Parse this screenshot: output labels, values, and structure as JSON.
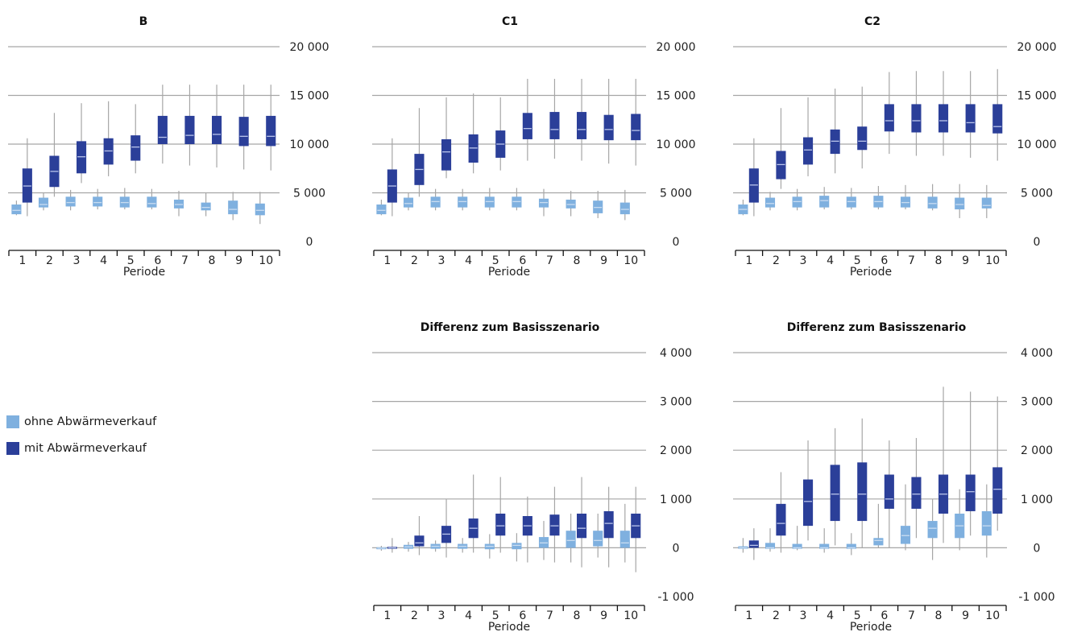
{
  "colors": {
    "ohne": "#7fb0df",
    "mit": "#2b3f99",
    "grid": "#a6a6a6",
    "whisker": "#a6a6a6",
    "median_mit": "#b9c4ea",
    "median_ohne": "#c9dcf1"
  },
  "legend": {
    "items": [
      {
        "label": "ohne Abwärmeverkauf",
        "color": "#7fb0df"
      },
      {
        "label": "mit Abwärmeverkauf",
        "color": "#2b3f99"
      }
    ]
  },
  "chart_data": [
    {
      "type": "box",
      "title": "B",
      "xlabel": "Periode",
      "categories": [
        "1",
        "2",
        "3",
        "4",
        "5",
        "6",
        "7",
        "8",
        "9",
        "10"
      ],
      "ylim": [
        0,
        20000
      ],
      "yticks": [
        0,
        5000,
        10000,
        15000,
        20000
      ],
      "ytick_labels": [
        "0",
        "5 000",
        "10 000",
        "15 000",
        "20 000"
      ],
      "series": [
        {
          "name": "ohne Abwärmeverkauf",
          "min": [
            2700,
            3200,
            3200,
            3300,
            3300,
            3300,
            2600,
            2600,
            2200,
            1800
          ],
          "q1": [
            2800,
            3500,
            3600,
            3600,
            3500,
            3500,
            3400,
            3200,
            2800,
            2700
          ],
          "median": [
            3200,
            3800,
            4000,
            4000,
            4000,
            3900,
            3800,
            3500,
            3300,
            3200
          ],
          "q3": [
            3800,
            4500,
            4600,
            4600,
            4600,
            4600,
            4300,
            4000,
            4200,
            3900
          ],
          "max": [
            4200,
            5000,
            5300,
            5400,
            5500,
            5400,
            5200,
            5000,
            5100,
            5100
          ]
        },
        {
          "name": "mit Abwärmeverkauf",
          "min": [
            2600,
            4600,
            6000,
            6700,
            7000,
            8000,
            7800,
            7600,
            7400,
            7300
          ],
          "q1": [
            4000,
            5600,
            7000,
            7900,
            8300,
            10000,
            10000,
            10000,
            9800,
            9800
          ],
          "median": [
            5700,
            7200,
            8700,
            9300,
            9700,
            10700,
            10900,
            11000,
            10800,
            10800
          ],
          "q3": [
            7500,
            8800,
            10300,
            10600,
            10900,
            12900,
            12900,
            12900,
            12800,
            12900
          ],
          "max": [
            10600,
            13200,
            14200,
            14400,
            14100,
            16100,
            16100,
            16100,
            16100,
            16100
          ]
        }
      ]
    },
    {
      "type": "box",
      "title": "C1",
      "xlabel": "Periode",
      "categories": [
        "1",
        "2",
        "3",
        "4",
        "5",
        "6",
        "7",
        "8",
        "9",
        "10"
      ],
      "ylim": [
        0,
        20000
      ],
      "yticks": [
        0,
        5000,
        10000,
        15000,
        20000
      ],
      "ytick_labels": [
        "0",
        "5 000",
        "10 000",
        "15 000",
        "20 000"
      ],
      "series": [
        {
          "name": "ohne Abwärmeverkauf",
          "min": [
            2700,
            3200,
            3200,
            3200,
            3200,
            3200,
            2600,
            2600,
            2400,
            2200
          ],
          "q1": [
            2800,
            3500,
            3500,
            3500,
            3500,
            3500,
            3500,
            3400,
            2900,
            2800
          ],
          "median": [
            3200,
            3900,
            4100,
            4100,
            4100,
            4100,
            4000,
            3800,
            3500,
            3300
          ],
          "q3": [
            3800,
            4500,
            4600,
            4600,
            4600,
            4600,
            4400,
            4300,
            4200,
            4000
          ],
          "max": [
            4300,
            5000,
            5400,
            5400,
            5500,
            5500,
            5400,
            5200,
            5200,
            5300
          ]
        },
        {
          "name": "mit Abwärmeverkauf",
          "min": [
            2600,
            4600,
            6500,
            7000,
            7300,
            8300,
            8500,
            8300,
            8000,
            7800
          ],
          "q1": [
            4000,
            5800,
            7300,
            8100,
            8600,
            10500,
            10500,
            10500,
            10400,
            10400
          ],
          "median": [
            5700,
            7400,
            9200,
            9600,
            10000,
            11600,
            11500,
            11500,
            11500,
            11400
          ],
          "q3": [
            7400,
            9000,
            10500,
            11000,
            11400,
            13200,
            13300,
            13300,
            13000,
            13100
          ],
          "max": [
            10600,
            13700,
            14800,
            15200,
            14800,
            16700,
            16700,
            16700,
            16700,
            16700
          ]
        }
      ]
    },
    {
      "type": "box",
      "title": "C2",
      "xlabel": "Periode",
      "categories": [
        "1",
        "2",
        "3",
        "4",
        "5",
        "6",
        "7",
        "8",
        "9",
        "10"
      ],
      "ylim": [
        0,
        20000
      ],
      "yticks": [
        0,
        5000,
        10000,
        15000,
        20000
      ],
      "ytick_labels": [
        "0",
        "5 000",
        "10 000",
        "15 000",
        "20 000"
      ],
      "series": [
        {
          "name": "ohne Abwärmeverkauf",
          "min": [
            2700,
            3200,
            3200,
            3300,
            3300,
            3300,
            3300,
            3200,
            2400,
            2400
          ],
          "q1": [
            2800,
            3500,
            3500,
            3500,
            3500,
            3500,
            3500,
            3400,
            3300,
            3400
          ],
          "median": [
            3300,
            3900,
            4100,
            4200,
            4100,
            4100,
            4000,
            3900,
            3800,
            3700
          ],
          "q3": [
            3800,
            4500,
            4600,
            4700,
            4600,
            4700,
            4600,
            4600,
            4500,
            4500
          ],
          "max": [
            4300,
            5100,
            5400,
            5600,
            5500,
            5700,
            5800,
            5900,
            5900,
            5800
          ]
        },
        {
          "name": "mit Abwärmeverkauf",
          "min": [
            2600,
            5400,
            6700,
            7000,
            7500,
            9000,
            8800,
            8800,
            8600,
            8300
          ],
          "q1": [
            4000,
            6400,
            7900,
            9000,
            9400,
            11300,
            11200,
            11200,
            11200,
            11100
          ],
          "median": [
            5800,
            7900,
            9400,
            10300,
            10300,
            12400,
            12400,
            12400,
            12200,
            11800
          ],
          "q3": [
            7500,
            9300,
            10700,
            11500,
            11800,
            14100,
            14100,
            14100,
            14100,
            14100
          ],
          "max": [
            10600,
            13700,
            14800,
            15700,
            15900,
            17400,
            17500,
            17500,
            17500,
            17700
          ]
        }
      ]
    },
    {
      "type": "box",
      "title": "Differenz zum Basisszenario",
      "xlabel": "Periode",
      "categories": [
        "1",
        "2",
        "3",
        "4",
        "5",
        "6",
        "7",
        "8",
        "9",
        "10"
      ],
      "ylim": [
        -1000,
        4000
      ],
      "yticks": [
        -1000,
        0,
        1000,
        2000,
        3000,
        4000
      ],
      "ytick_labels": [
        "-1 000",
        "0",
        "1 000",
        "2 000",
        "3 000",
        "4 000"
      ],
      "series": [
        {
          "name": "ohne Abwärmeverkauf",
          "min": [
            -60,
            -80,
            -80,
            -100,
            -220,
            -280,
            -250,
            -300,
            -200,
            -300
          ],
          "q1": [
            -30,
            -20,
            -20,
            -20,
            -30,
            -30,
            0,
            0,
            30,
            0
          ],
          "median": [
            -10,
            20,
            30,
            30,
            30,
            50,
            100,
            150,
            150,
            100
          ],
          "q3": [
            10,
            60,
            80,
            80,
            80,
            100,
            220,
            350,
            350,
            350
          ],
          "max": [
            40,
            120,
            150,
            200,
            280,
            300,
            550,
            700,
            700,
            900
          ]
        },
        {
          "name": "mit Abwärmeverkauf",
          "min": [
            -100,
            -150,
            -200,
            -100,
            -100,
            -300,
            -300,
            -400,
            -400,
            -500
          ],
          "q1": [
            -20,
            30,
            100,
            200,
            250,
            250,
            250,
            200,
            200,
            200
          ],
          "median": [
            0,
            100,
            280,
            400,
            450,
            450,
            450,
            400,
            500,
            450
          ],
          "q3": [
            20,
            250,
            450,
            600,
            700,
            650,
            680,
            700,
            750,
            700
          ],
          "max": [
            200,
            650,
            1000,
            1500,
            1450,
            1050,
            1250,
            1450,
            1250,
            1250
          ]
        }
      ]
    },
    {
      "type": "box",
      "title": "Differenz zum Basisszenario",
      "xlabel": "Periode",
      "categories": [
        "1",
        "2",
        "3",
        "4",
        "5",
        "6",
        "7",
        "8",
        "9",
        "10"
      ],
      "ylim": [
        -1000,
        4000
      ],
      "yticks": [
        -1000,
        0,
        1000,
        2000,
        3000,
        4000
      ],
      "ytick_labels": [
        "-1 000",
        "0",
        "1 000",
        "2 000",
        "3 000",
        "4 000"
      ],
      "series": [
        {
          "name": "ohne Abwärmeverkauf",
          "min": [
            -100,
            -80,
            -50,
            -100,
            -150,
            0,
            -50,
            -250,
            -50,
            -200
          ],
          "q1": [
            -20,
            -20,
            -20,
            -20,
            -20,
            50,
            80,
            200,
            200,
            250
          ],
          "median": [
            0,
            0,
            0,
            0,
            0,
            150,
            250,
            400,
            450,
            450
          ],
          "q3": [
            30,
            100,
            80,
            80,
            80,
            200,
            450,
            550,
            700,
            750
          ],
          "max": [
            200,
            400,
            450,
            400,
            300,
            900,
            1300,
            1000,
            1200,
            1300
          ]
        },
        {
          "name": "mit Abwärmeverkauf",
          "min": [
            -250,
            -100,
            150,
            50,
            0,
            0,
            200,
            100,
            250,
            350
          ],
          "q1": [
            0,
            250,
            450,
            550,
            550,
            800,
            800,
            700,
            750,
            700
          ],
          "median": [
            50,
            500,
            950,
            1100,
            1100,
            1000,
            1100,
            1100,
            1150,
            1200
          ],
          "q3": [
            150,
            900,
            1400,
            1700,
            1750,
            1500,
            1450,
            1500,
            1500,
            1650
          ],
          "max": [
            400,
            1550,
            2200,
            2450,
            2650,
            2200,
            2250,
            3300,
            3200,
            3100
          ]
        }
      ]
    }
  ]
}
